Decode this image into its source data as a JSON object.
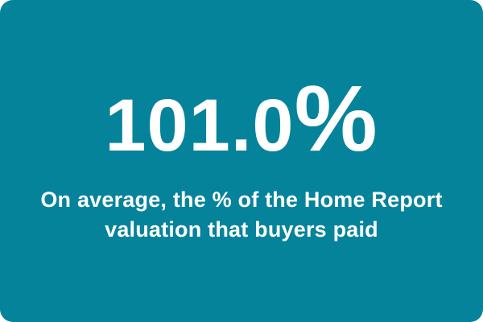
{
  "colors": {
    "card_background": "#05839B",
    "text": "#FFFFFF",
    "page_background": "#FFFFFF"
  },
  "stat_card": {
    "value": "101.0",
    "unit": "%",
    "description_line1": "On average, the % of the Home Report",
    "description_line2": "valuation that buyers paid"
  },
  "chart_data": {
    "type": "table",
    "columns": [
      "value",
      "label"
    ],
    "rows": [
      [
        "101.0%",
        "On average, the % of the Home Report valuation that buyers paid"
      ]
    ],
    "values": [
      101.0
    ],
    "unit": "%",
    "title": "101.0%"
  }
}
